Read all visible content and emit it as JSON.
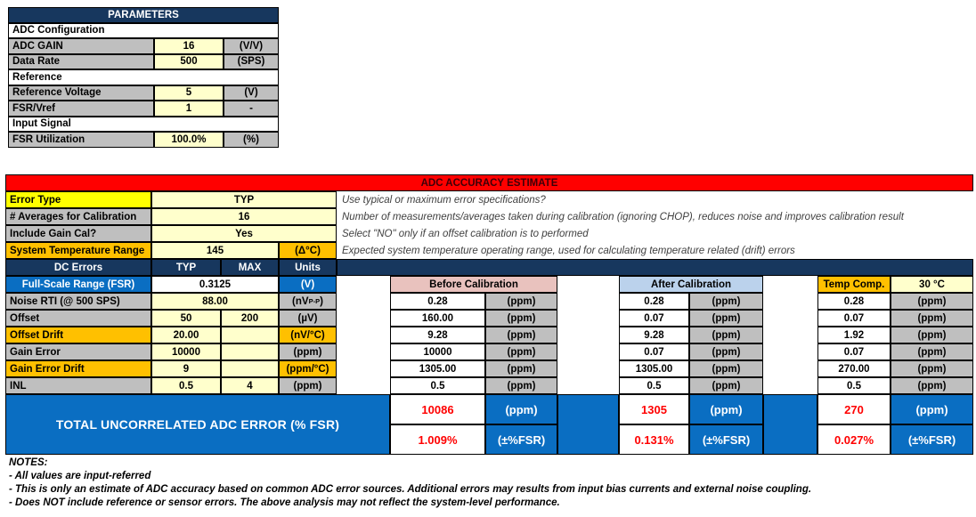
{
  "palette": {
    "navy_header": "#17375E",
    "accent_blue": "#0A6EC2",
    "input_yellow": "#FFFFCC",
    "label_gray": "#BFBFBF",
    "highlight_yellow": "#FFFF00",
    "highlight_orange": "#FFC000",
    "title_red": "#FF0000",
    "before_cal_pink": "#E9C2BE",
    "after_cal_blue": "#BBD2EC",
    "result_red_text": "#FF0000"
  },
  "parameters": {
    "title": "PARAMETERS",
    "rows": [
      {
        "label": "ADC Configuration"
      },
      {
        "label": "ADC GAIN",
        "value": "16",
        "unit": "(V/V)"
      },
      {
        "label": "Data Rate",
        "value": "500",
        "unit": "(SPS)"
      },
      {
        "label": "Reference"
      },
      {
        "label": "Reference Voltage",
        "value": "5",
        "unit": "(V)"
      },
      {
        "label": "FSR/Vref",
        "value": "1",
        "unit": "-"
      },
      {
        "label": "Input Signal"
      },
      {
        "label": "FSR Utilization",
        "value": "100.0%",
        "unit": "(%)"
      }
    ]
  },
  "estimate": {
    "title": "ADC ACCURACY ESTIMATE",
    "config_rows": [
      {
        "label": "Error Type",
        "value": "TYP",
        "note": "Use typical or maximum error specifications?"
      },
      {
        "label": "# Averages for Calibration",
        "value": "16",
        "note": "Number of measurements/averages taken during calibration (ignoring CHOP), reduces noise and improves calibration result"
      },
      {
        "label": "Include Gain Cal?",
        "value": "Yes",
        "note": "Select \"NO\" only if an offset calibration is to performed"
      },
      {
        "label": "System Temperature Range",
        "value": "145",
        "unit": "(Δ°C)",
        "note": "Expected system temperature operating range, used for calculating temperature related (drift) errors"
      }
    ],
    "dc_header": {
      "label": "DC Errors",
      "typ": "TYP",
      "max": "MAX",
      "units": "Units"
    },
    "fsr_row": {
      "label": "Full-Scale Range (FSR)",
      "value": "0.3125",
      "unit": "(V)"
    },
    "block_headers": {
      "before": "Before Calibration",
      "after": "After Calibration",
      "temp_comp": "Temp Comp.",
      "temp_value": "30 °C"
    },
    "error_rows": [
      {
        "label": "Noise RTI (@ 500 SPS)",
        "typ": "88.00",
        "max": "",
        "unit_main": "(nV",
        "unit_sub": "P-P",
        "unit_end": ")",
        "before": "0.28",
        "after": "0.28",
        "temp": "0.28",
        "unit_cal": "(ppm)"
      },
      {
        "label": "Offset",
        "typ": "50",
        "max": "200",
        "unit_main": "(µV)",
        "before": "160.00",
        "after": "0.07",
        "temp": "0.07",
        "unit_cal": "(ppm)"
      },
      {
        "label": "Offset Drift",
        "typ": "20.00",
        "max": "",
        "unit_main": "(nV/°C)",
        "before": "9.28",
        "after": "9.28",
        "temp": "1.92",
        "unit_cal": "(ppm)"
      },
      {
        "label": "Gain Error",
        "typ": "10000",
        "max": "",
        "unit_main": "(ppm)",
        "before": "10000",
        "after": "0.07",
        "temp": "0.07",
        "unit_cal": "(ppm)"
      },
      {
        "label": "Gain Error Drift",
        "typ": "9",
        "max": "",
        "unit_main": "(ppm/°C)",
        "before": "1305.00",
        "after": "1305.00",
        "temp": "270.00",
        "unit_cal": "(ppm)"
      },
      {
        "label": "INL",
        "typ": "0.5",
        "max": "4",
        "unit_main": "(ppm)",
        "before": "0.5",
        "after": "0.5",
        "temp": "0.5",
        "unit_cal": "(ppm)"
      }
    ],
    "total": {
      "label": "TOTAL UNCORRELATED ADC ERROR (% FSR)",
      "unit_ppm": "(ppm)",
      "unit_pct": "(±%FSR)",
      "before_ppm": "10086",
      "before_pct": "1.009%",
      "after_ppm": "1305",
      "after_pct": "0.131%",
      "temp_ppm": "270",
      "temp_pct": "0.027%"
    }
  },
  "notes": {
    "title": "NOTES:",
    "lines": [
      "- All values are input-referred",
      "- This is only an estimate of ADC accuracy based on common ADC error sources. Additional errors may results from input bias currents and external noise coupling.",
      "- Does NOT include reference or sensor errors. The above analysis may not reflect the system-level performance."
    ]
  }
}
